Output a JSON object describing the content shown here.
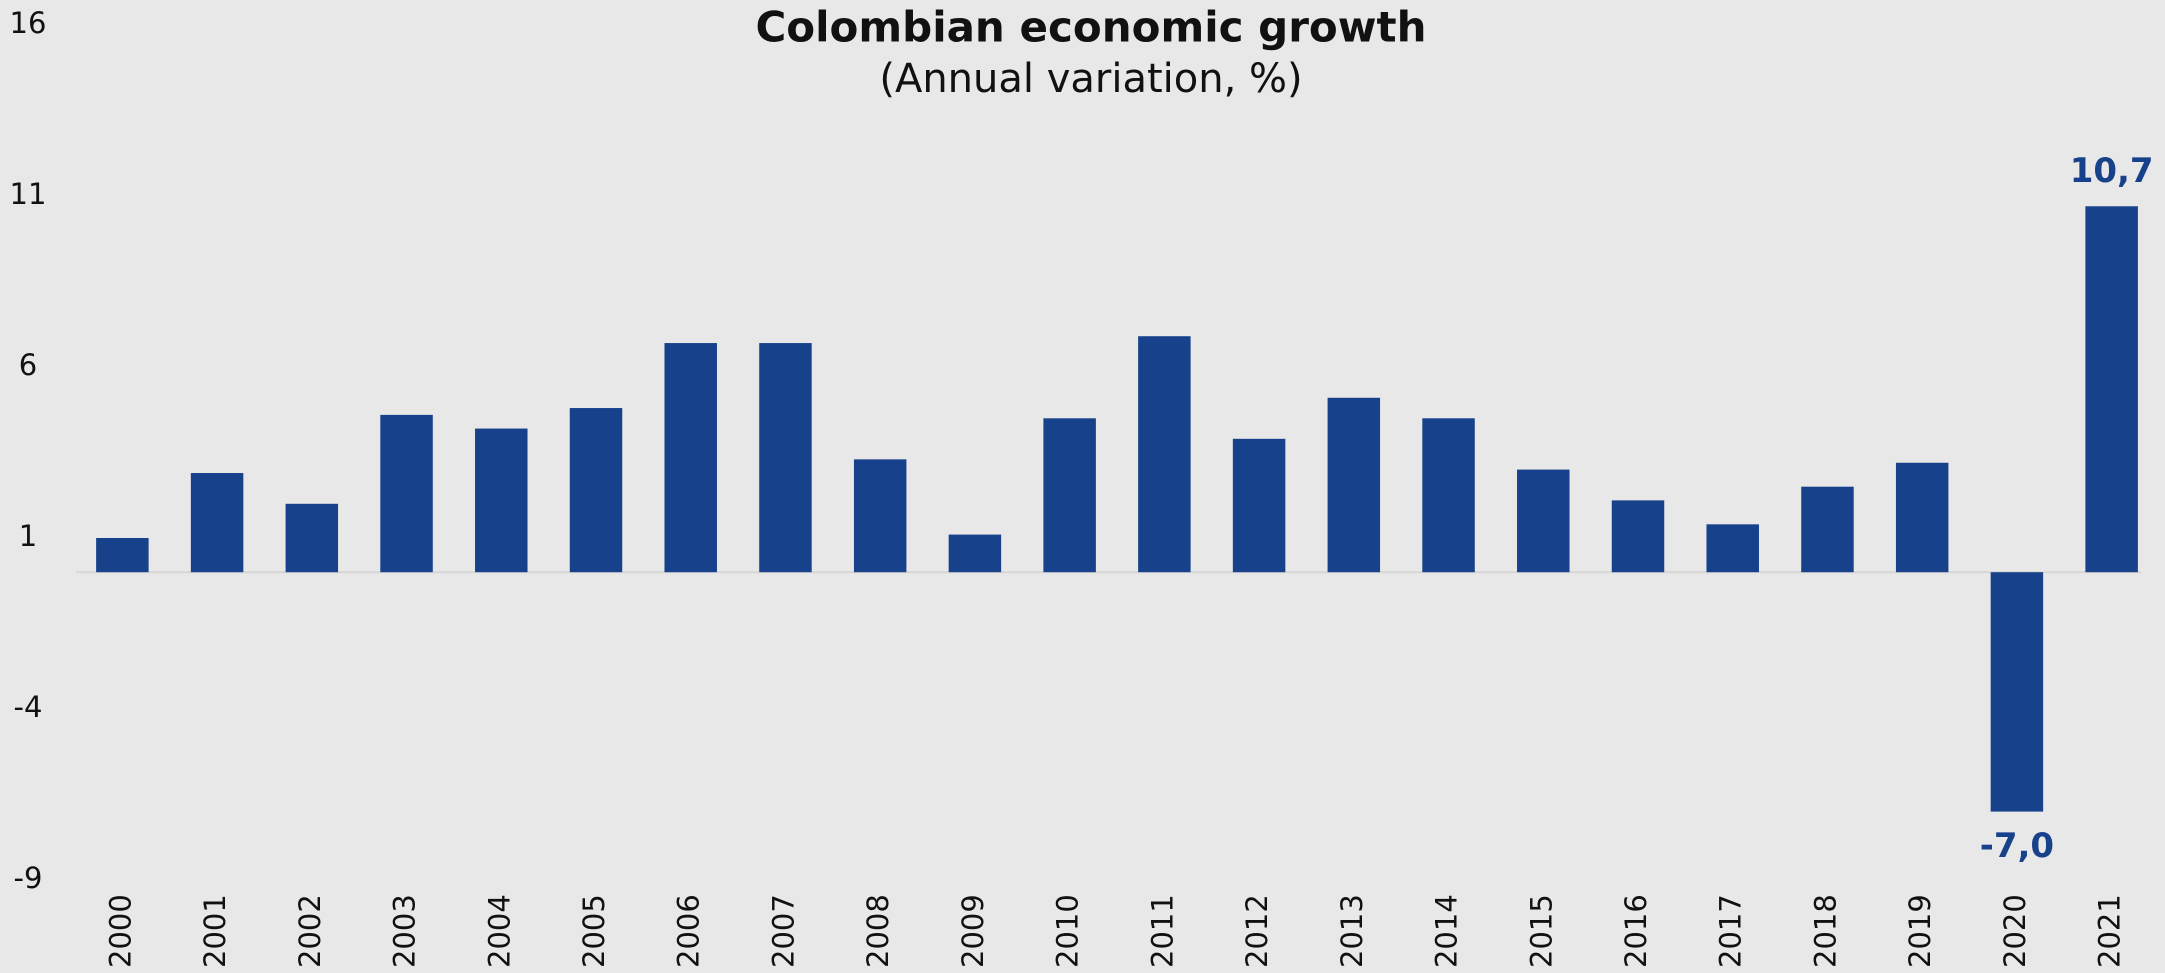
{
  "chart_data": {
    "type": "bar",
    "title": "Colombian economic growth",
    "subtitle": "(Annual variation, %)",
    "categories": [
      "2000",
      "2001",
      "2002",
      "2003",
      "2004",
      "2005",
      "2006",
      "2007",
      "2008",
      "2009",
      "2010",
      "2011",
      "2012",
      "2013",
      "2014",
      "2015",
      "2016",
      "2017",
      "2018",
      "2019",
      "2020",
      "2021"
    ],
    "values": [
      1.0,
      2.9,
      2.0,
      4.6,
      4.2,
      4.8,
      6.7,
      6.7,
      3.3,
      1.1,
      4.5,
      6.9,
      3.9,
      5.1,
      4.5,
      3.0,
      2.1,
      1.4,
      2.5,
      3.2,
      -7.0,
      10.7
    ],
    "value_labels": [
      null,
      null,
      null,
      null,
      null,
      null,
      null,
      null,
      null,
      null,
      null,
      null,
      null,
      null,
      null,
      null,
      null,
      null,
      null,
      null,
      "-7,0",
      "10,7"
    ],
    "color": "#17418a",
    "ylim": [
      -9,
      16
    ],
    "yticks": [
      -9,
      -4,
      1,
      6,
      11,
      16
    ],
    "grid": false
  }
}
